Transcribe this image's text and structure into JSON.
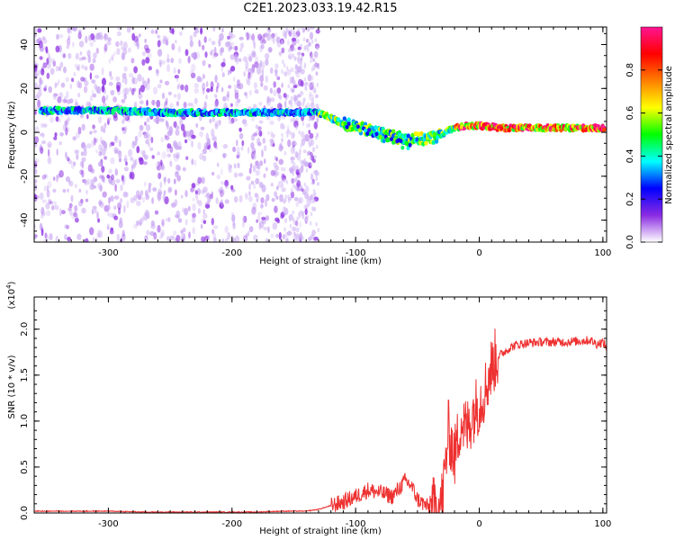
{
  "title": "C2E1.2023.033.19.42.R15",
  "top_panel": {
    "xlabel": "Height of straight line (km)",
    "ylabel": "Frequency (Hz)",
    "xticks": [
      "-300",
      "-200",
      "-100",
      "0",
      "100"
    ],
    "yticks": [
      "40",
      "20",
      "0",
      "-20",
      "-40"
    ]
  },
  "colorbar": {
    "label": "Normalized spectral amplitude",
    "ticks": [
      "0.0",
      "0.2",
      "0.4",
      "0.6",
      "0.8"
    ],
    "colors": [
      "#ffffff",
      "#8a2be2",
      "#0000ff",
      "#00ffff",
      "#00ff00",
      "#ffff00",
      "#ff7f00",
      "#ff0000",
      "#ff1493"
    ]
  },
  "bottom_panel": {
    "xlabel": "Height of straight line (km)",
    "ylabel": "SNR (10 * v/v)",
    "scale_label": "(x10",
    "scale_exp": "4",
    "scale_close": ")",
    "xticks": [
      "-300",
      "-200",
      "-100",
      "0",
      "100"
    ],
    "yticks": [
      "0.0",
      "0.5",
      "1.0",
      "1.5",
      "2.0"
    ]
  },
  "chart_data": [
    {
      "type": "heatmap",
      "title": "C2E1.2023.033.19.42.R15",
      "xlabel": "Height of straight line (km)",
      "ylabel": "Frequency (Hz)",
      "xlim": [
        -360,
        103
      ],
      "ylim": [
        -50,
        48
      ],
      "colorbar_label": "Normalized spectral amplitude",
      "colorbar_range": [
        0.0,
        1.0
      ],
      "dominant_frequency_track": {
        "x": [
          -350,
          -300,
          -250,
          -200,
          -170,
          -150,
          -130,
          -110,
          -90,
          -75,
          -60,
          -45,
          -35,
          -20,
          -10,
          0,
          20,
          50,
          80,
          100
        ],
        "y": [
          10,
          10,
          9,
          9,
          9,
          9,
          9,
          4,
          1,
          -1,
          -3,
          -3,
          -2,
          2,
          3,
          3,
          2,
          2,
          2,
          2
        ]
      }
    },
    {
      "type": "line",
      "xlabel": "Height of straight line (km)",
      "ylabel": "SNR (10 * v/v)",
      "xlim": [
        -360,
        103
      ],
      "ylim": [
        0,
        2.35
      ],
      "y_scale_factor": 10000,
      "series": [
        {
          "color": "#ee3030",
          "x": [
            -360,
            -330,
            -300,
            -270,
            -240,
            -210,
            -180,
            -160,
            -140,
            -130,
            -120,
            -110,
            -100,
            -90,
            -80,
            -70,
            -60,
            -55,
            -50,
            -45,
            -40,
            -35,
            -30,
            -27,
            -25,
            -20,
            -15,
            -10,
            -5,
            0,
            5,
            9,
            12,
            15,
            20,
            25,
            30,
            40,
            50,
            60,
            70,
            80,
            90,
            95,
            100,
            103
          ],
          "y": [
            0.02,
            0.02,
            0.02,
            0.01,
            0.01,
            0.01,
            0.01,
            0.02,
            0.02,
            0.04,
            0.08,
            0.12,
            0.18,
            0.25,
            0.22,
            0.18,
            0.35,
            0.3,
            0.15,
            0.1,
            0.05,
            0.05,
            0.15,
            0.55,
            0.9,
            0.6,
            1.0,
            0.9,
            1.1,
            1.2,
            1.35,
            1.55,
            1.65,
            1.7,
            1.75,
            1.8,
            1.83,
            1.85,
            1.86,
            1.86,
            1.86,
            1.87,
            1.88,
            1.84,
            1.86,
            1.8
          ]
        }
      ]
    }
  ]
}
